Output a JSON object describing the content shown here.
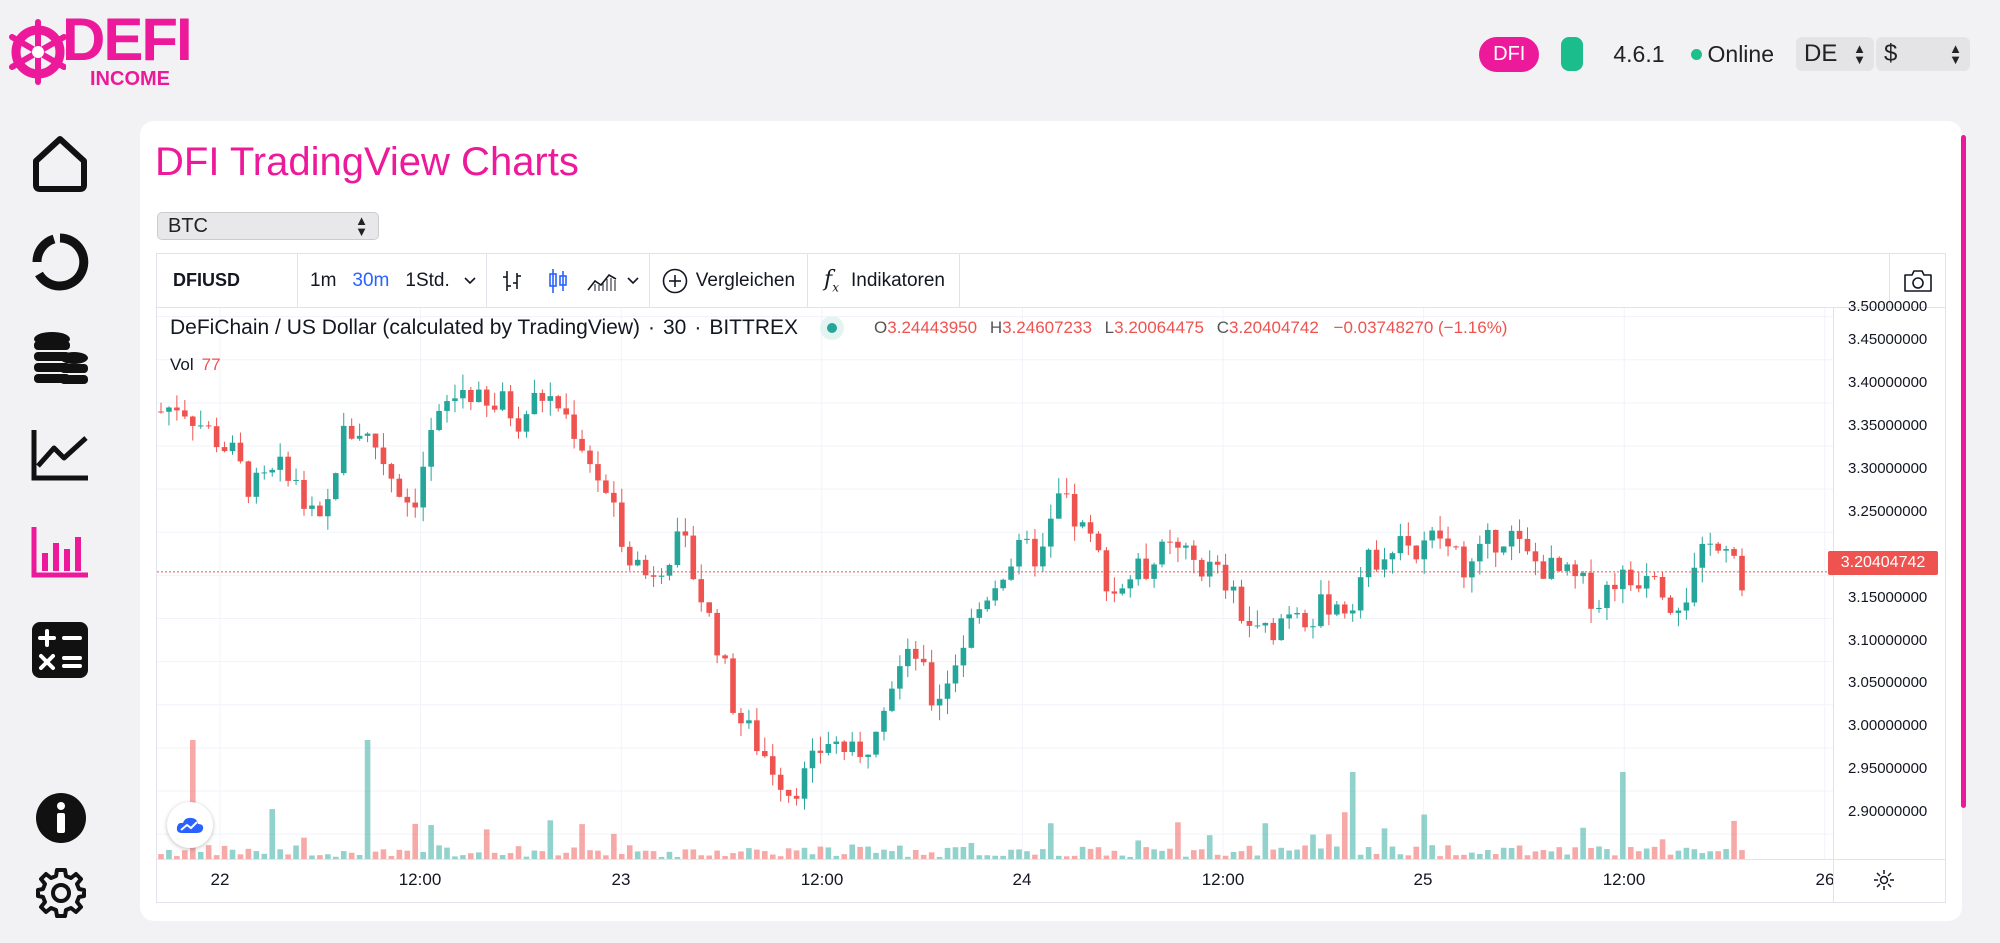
{
  "brand": {
    "word": "DEFI",
    "sub": "INCOME"
  },
  "header": {
    "badge": "DFI",
    "version": "4.6.1",
    "status": "Online",
    "language": "DE",
    "currency": "$"
  },
  "sidebar": {
    "items": [
      {
        "icon": "home-icon",
        "active": false
      },
      {
        "icon": "pie-chart-icon",
        "active": false
      },
      {
        "icon": "coins-stack-icon",
        "active": false
      },
      {
        "icon": "line-chart-icon",
        "active": false
      },
      {
        "icon": "bar-chart-icon",
        "active": true
      },
      {
        "icon": "calculator-icon",
        "active": false
      }
    ],
    "bottom": [
      {
        "icon": "info-icon"
      },
      {
        "icon": "settings-gear-icon"
      }
    ]
  },
  "page": {
    "title": "DFI TradingView Charts",
    "pair_select": "BTC"
  },
  "tradingview": {
    "symbol": "DFIUSD",
    "intervals": [
      "1m",
      "30m",
      "1Std."
    ],
    "active_interval": "30m",
    "compare_label": "Vergleichen",
    "indicators_label": "Indikatoren",
    "legend": {
      "name": "DeFiChain / US Dollar (calculated by TradingView)",
      "interval": "30",
      "exchange": "BITTREX",
      "open_key": "O",
      "open": "3.24443950",
      "high_key": "H",
      "high": "3.24607233",
      "low_key": "L",
      "low": "3.20064475",
      "close_key": "C",
      "close": "3.20404742",
      "change": "−0.03748270 (−1.16%)"
    },
    "volume": {
      "label": "Vol",
      "value": "77"
    },
    "price_labels": [
      "3.50000000",
      "3.45000000",
      "3.40000000",
      "3.35000000",
      "3.30000000",
      "3.25000000",
      "3.15000000",
      "3.10000000",
      "3.05000000",
      "3.00000000",
      "2.95000000",
      "2.90000000"
    ],
    "last_price": "3.20404742",
    "time_labels": [
      "22",
      "12:00",
      "23",
      "12:00",
      "24",
      "12:00",
      "25",
      "12:00",
      "26"
    ],
    "colors": {
      "up": "#26a69a",
      "down": "#ef5350",
      "accent": "#ec1a9a"
    }
  },
  "chart_data": {
    "type": "candlestick",
    "x_labels": [
      "22",
      "12:00",
      "23",
      "12:00",
      "24",
      "12:00",
      "25",
      "12:00",
      "26"
    ],
    "ylim": [
      2.87,
      3.51
    ],
    "last_price": 3.20404742,
    "series_close_approx": [
      3.39,
      3.4,
      3.38,
      3.36,
      3.34,
      3.3,
      3.31,
      3.33,
      3.28,
      3.25,
      3.36,
      3.37,
      3.35,
      3.31,
      3.28,
      3.36,
      3.4,
      3.42,
      3.39,
      3.4,
      3.38,
      3.41,
      3.4,
      3.37,
      3.33,
      3.28,
      3.23,
      3.2,
      3.22,
      3.24,
      3.18,
      3.12,
      3.04,
      3.01,
      2.98,
      2.95,
      2.97,
      3.01,
      3.0,
      2.98,
      3.05,
      3.09,
      3.11,
      3.05,
      3.09,
      3.14,
      3.18,
      3.21,
      3.23,
      3.22,
      3.29,
      3.26,
      3.23,
      3.18,
      3.2,
      3.21,
      3.23,
      3.22,
      3.21,
      3.2,
      3.16,
      3.13,
      3.14,
      3.17,
      3.15,
      3.17,
      3.16,
      3.21,
      3.23,
      3.25,
      3.22,
      3.25,
      3.22,
      3.21,
      3.24,
      3.25,
      3.22,
      3.21,
      3.2,
      3.19,
      3.17,
      3.2,
      3.19,
      3.22,
      3.17,
      3.18,
      3.23,
      3.25,
      3.2
    ]
  }
}
